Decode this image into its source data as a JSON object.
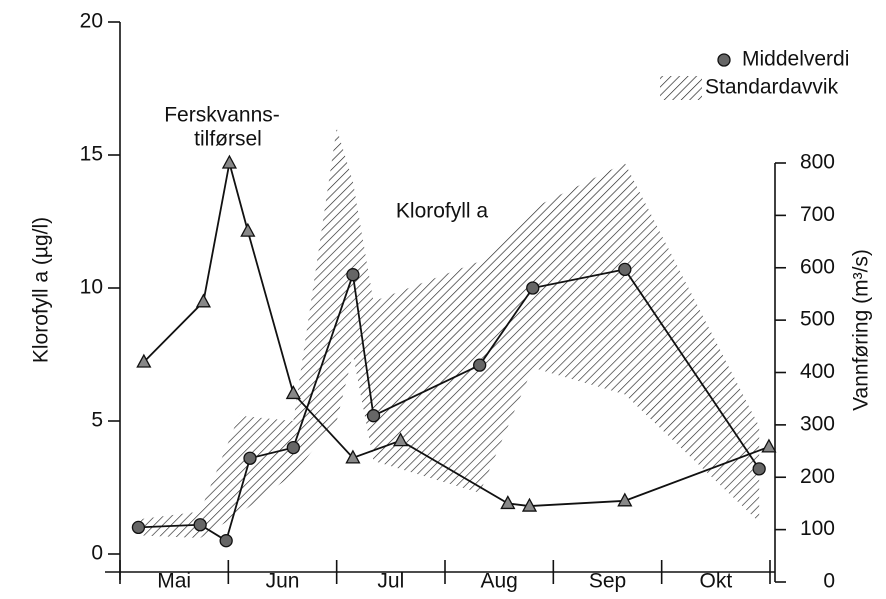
{
  "chart_data": {
    "type": "line",
    "ylabel": "Klorofyll a (µg/l)",
    "y2label": "Vannføring (m³/s)",
    "categories": [
      "Mai",
      "Jun",
      "Jul",
      "Aug",
      "Sep",
      "Okt"
    ],
    "xlim": [
      0,
      6
    ],
    "xticks": [
      0,
      1,
      2,
      3,
      4,
      5,
      6
    ],
    "ylim": [
      0,
      20
    ],
    "yticks": [
      0,
      5,
      10,
      15,
      20
    ],
    "y2lim": [
      0,
      800
    ],
    "y2ticks": [
      0,
      100,
      200,
      300,
      400,
      500,
      600,
      700,
      800
    ],
    "legend": "upper right",
    "annotations": [
      {
        "lines": [
          "Ferskvanns-",
          "tilførsel"
        ]
      },
      {
        "lines": [
          "Klorofyll a"
        ]
      }
    ],
    "band": {
      "name": "Standardavvik",
      "color": "#222222",
      "x": [
        0.17,
        0.74,
        1.1,
        1.6,
        2.0,
        2.15,
        2.34,
        3.32,
        3.81,
        4.66,
        5.9
      ],
      "upper": [
        1.3,
        1.6,
        5.2,
        5.0,
        16,
        14,
        9.5,
        11,
        13,
        14.7,
        4.8
      ],
      "lower": [
        0.7,
        0.6,
        1.5,
        3.0,
        5,
        7.5,
        3.5,
        2.3,
        7,
        6,
        1.2
      ]
    },
    "series": [
      {
        "name": "Middelverdi",
        "color": "#666666",
        "marker": "circle",
        "x": [
          0.17,
          0.74,
          0.98,
          1.2,
          1.6,
          2.15,
          2.34,
          3.32,
          3.81,
          4.66,
          5.9
        ],
        "values": [
          1.0,
          1.1,
          0.5,
          3.6,
          4.0,
          10.5,
          5.2,
          7.1,
          10.0,
          10.7,
          3.2
        ]
      },
      {
        "color": "#888888",
        "marker": "triangle",
        "axis": "y2",
        "x": [
          0.22,
          0.77,
          1.01,
          1.18,
          1.6,
          2.15,
          2.59,
          3.58,
          3.78,
          4.66,
          5.99
        ],
        "values": [
          420,
          535,
          800,
          670,
          360,
          237,
          270,
          150,
          145,
          155,
          258
        ]
      }
    ]
  }
}
